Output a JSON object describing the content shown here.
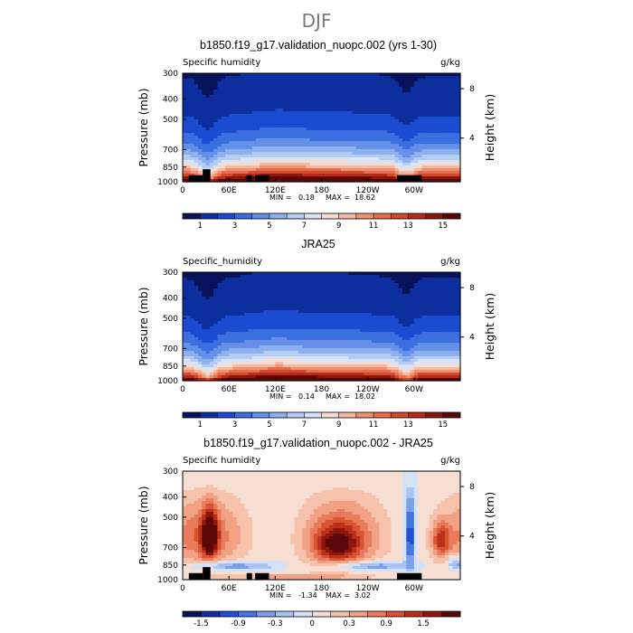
{
  "figure": {
    "title": "DJF"
  },
  "palettes": {
    "abs": [
      "#08125a",
      "#0d2f9e",
      "#1a4bd0",
      "#3b6fe0",
      "#6590e8",
      "#8db0ee",
      "#b4cdf3",
      "#d7e3f6",
      "#f5dcd2",
      "#f4b9a2",
      "#ef9273",
      "#e66d4c",
      "#d24a2c",
      "#b52c1a",
      "#8a170d",
      "#5c0808"
    ],
    "diff": [
      "#08125a",
      "#0f2fa0",
      "#1f4fd2",
      "#4576e1",
      "#7a9feb",
      "#a9c3f1",
      "#d5e1f6",
      "#f6ded3",
      "#f6c2ab",
      "#f1a184",
      "#e97b5d",
      "#d8532f",
      "#ba301a",
      "#8e160c",
      "#5c0808"
    ]
  },
  "chart_data": [
    {
      "type": "heatmap",
      "title": "b1850.f19_g17.validation_nuopc.002 (yrs 1-30)",
      "left_label": "Specific humidity",
      "units": "g/kg",
      "ylabel": "Pressure (mb)",
      "ylabel_right": "Height (km)",
      "xticks": [
        "0",
        "60E",
        "120E",
        "180",
        "120W",
        "60W"
      ],
      "xtick_lon": [
        0,
        60,
        120,
        180,
        240,
        300
      ],
      "xlim": [
        0,
        360
      ],
      "yticks": [
        "300",
        "400",
        "500",
        "700",
        "850",
        "1000"
      ],
      "ytick_p": [
        300,
        400,
        500,
        700,
        850,
        1000
      ],
      "ylim": [
        1000,
        300
      ],
      "right_ticks": [
        "4",
        "8"
      ],
      "right_tick_p": [
        616,
        356
      ],
      "min_label": "MIN =",
      "min_value": "0.18",
      "max_label": "MAX =",
      "max_value": "18.62",
      "colorbar": {
        "palette": "abs",
        "labels": [
          "1",
          "3",
          "5",
          "7",
          "9",
          "11",
          "13",
          "15"
        ],
        "levels": [
          0,
          1,
          2,
          3,
          4,
          5,
          6,
          7,
          8,
          9,
          10,
          11,
          12,
          13,
          14,
          15,
          16
        ]
      },
      "field": {
        "kind": "humidity",
        "surface_q": 17.2,
        "topo": [
          [
            8,
            26,
            930
          ],
          [
            26,
            36,
            870
          ],
          [
            83,
            90,
            930
          ],
          [
            94,
            112,
            930
          ],
          [
            278,
            310,
            930
          ]
        ]
      }
    },
    {
      "type": "heatmap",
      "title": "JRA25",
      "left_label": "Specific_humidity",
      "units": "g/kg",
      "ylabel": "Pressure (mb)",
      "ylabel_right": "Height (km)",
      "xticks": [
        "0",
        "60E",
        "120E",
        "180",
        "120W",
        "60W"
      ],
      "xtick_lon": [
        0,
        60,
        120,
        180,
        240,
        300
      ],
      "xlim": [
        0,
        360
      ],
      "yticks": [
        "300",
        "400",
        "500",
        "700",
        "850",
        "1000"
      ],
      "ytick_p": [
        300,
        400,
        500,
        700,
        850,
        1000
      ],
      "ylim": [
        1000,
        300
      ],
      "right_ticks": [
        "4",
        "8"
      ],
      "right_tick_p": [
        616,
        356
      ],
      "min_label": "MIN =",
      "min_value": "0.14",
      "max_label": "MAX =",
      "max_value": "18.02",
      "colorbar": {
        "palette": "abs",
        "labels": [
          "1",
          "3",
          "5",
          "7",
          "9",
          "11",
          "13",
          "15"
        ],
        "levels": [
          0,
          1,
          2,
          3,
          4,
          5,
          6,
          7,
          8,
          9,
          10,
          11,
          12,
          13,
          14,
          15,
          16
        ]
      },
      "field": {
        "kind": "humidity",
        "surface_q": 16.6,
        "topo": []
      }
    },
    {
      "type": "heatmap",
      "title": "b1850.f19_g17.validation_nuopc.002 - JRA25",
      "left_label": "Specific humidity",
      "units": "g/kg",
      "ylabel": "Pressure (mb)",
      "ylabel_right": "Height (km)",
      "xticks": [
        "0",
        "60E",
        "120E",
        "180",
        "120W",
        "60W"
      ],
      "xtick_lon": [
        0,
        60,
        120,
        180,
        240,
        300
      ],
      "xlim": [
        0,
        360
      ],
      "yticks": [
        "300",
        "400",
        "500",
        "700",
        "850",
        "1000"
      ],
      "ytick_p": [
        300,
        400,
        500,
        700,
        850,
        1000
      ],
      "ylim": [
        1000,
        300
      ],
      "right_ticks": [
        "4",
        "8"
      ],
      "right_tick_p": [
        616,
        356
      ],
      "min_label": "MIN =",
      "min_value": "-1.34",
      "max_label": "MAX =",
      "max_value": "3.02",
      "colorbar": {
        "palette": "diff",
        "labels": [
          "-1.5",
          "-0.9",
          "-0.3",
          "0",
          "0.3",
          "0.9",
          "1.5"
        ],
        "levels": [
          -2.1,
          -1.8,
          -1.5,
          -1.2,
          -0.9,
          -0.6,
          -0.3,
          0,
          0.3,
          0.6,
          0.9,
          1.2,
          1.5,
          1.8,
          2.1,
          2.4
        ]
      },
      "field": {
        "kind": "diff",
        "topo": [
          [
            8,
            26,
            930
          ],
          [
            26,
            36,
            870
          ],
          [
            83,
            90,
            930
          ],
          [
            94,
            112,
            930
          ],
          [
            278,
            310,
            930
          ]
        ]
      }
    }
  ]
}
